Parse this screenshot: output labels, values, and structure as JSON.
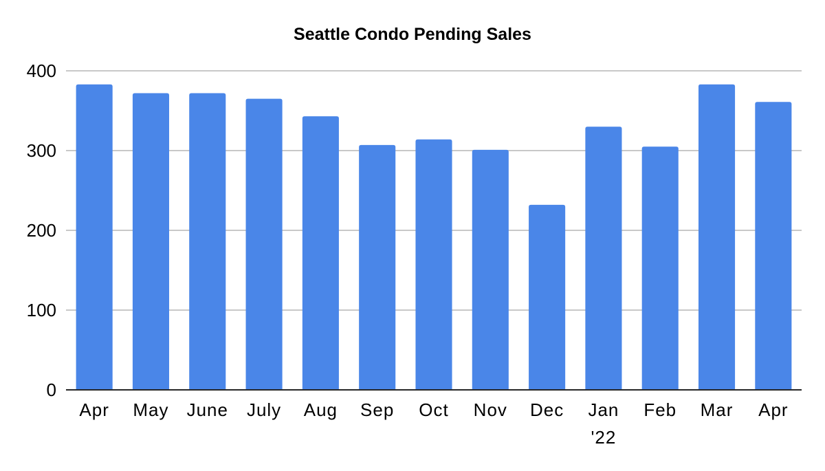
{
  "chart_data": {
    "type": "bar",
    "title": "Seattle Condo Pending Sales",
    "xlabel": "",
    "ylabel": "",
    "categories": [
      [
        "Apr"
      ],
      [
        "May"
      ],
      [
        "June"
      ],
      [
        "July"
      ],
      [
        "Aug"
      ],
      [
        "Sep"
      ],
      [
        "Oct"
      ],
      [
        "Nov"
      ],
      [
        "Dec"
      ],
      [
        "Jan",
        "'22"
      ],
      [
        "Feb"
      ],
      [
        "Mar"
      ],
      [
        "Apr"
      ]
    ],
    "values": [
      383,
      372,
      372,
      365,
      343,
      307,
      314,
      301,
      232,
      330,
      305,
      383,
      361
    ],
    "ylim": [
      0,
      400
    ],
    "yticks": [
      0,
      100,
      200,
      300,
      400
    ],
    "grid": true,
    "bar_color": "#4a86e8",
    "gridline_color": "#c8c8c8",
    "axis_color": "#262626"
  }
}
